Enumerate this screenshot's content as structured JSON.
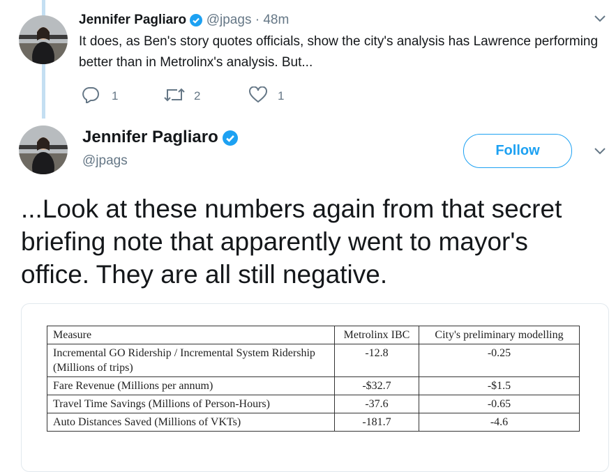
{
  "reply_tweet": {
    "name": "Jennifer Pagliaro",
    "handle": "@jpags",
    "separator": "·",
    "time": "48m",
    "text": "It does, as Ben's story quotes officials, show the city's analysis has Lawrence performing better than in Metrolinx's analysis. But...",
    "replies": "1",
    "retweets": "2",
    "likes": "1"
  },
  "main_tweet": {
    "name": "Jennifer Pagliaro",
    "handle": "@jpags",
    "follow_button": "Follow",
    "text": "...Look at these numbers again from that secret briefing note that apparently went to mayor's office. They are all still negative."
  },
  "table": {
    "header": [
      "Measure",
      "Metrolinx IBC",
      "City's preliminary modelling"
    ],
    "rows": [
      [
        "Incremental GO Ridership / Incremental System Ridership (Millions of trips)",
        "-12.8",
        "-0.25"
      ],
      [
        "Fare Revenue (Millions per annum)",
        "-$32.7",
        "-$1.5"
      ],
      [
        "Travel Time Savings (Millions of Person-Hours)",
        "-37.6",
        "-0.65"
      ],
      [
        "Auto Distances Saved (Millions of VKTs)",
        "-181.7",
        "-4.6"
      ]
    ]
  }
}
